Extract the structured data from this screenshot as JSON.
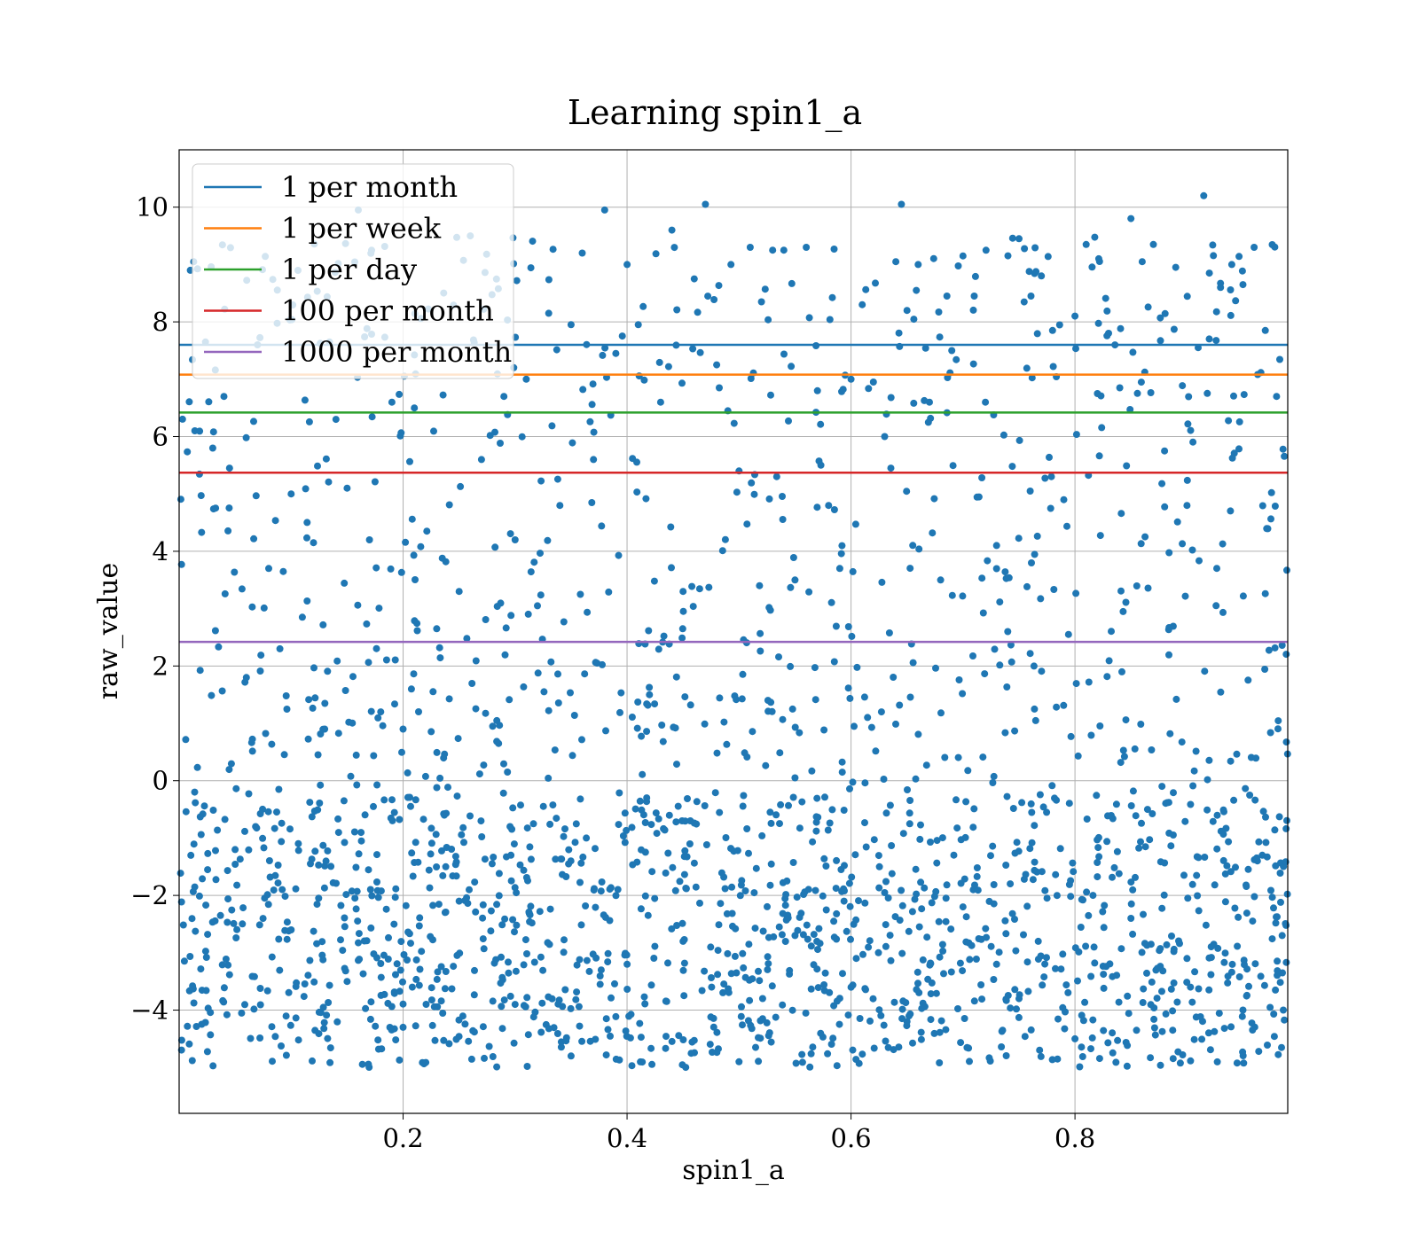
{
  "chart_data": {
    "type": "scatter",
    "title": "Learning spin1_a",
    "xlabel": "spin1_a",
    "ylabel": "raw_value",
    "xlim": [
      0.0,
      0.99
    ],
    "ylim": [
      -5.8,
      11.0
    ],
    "x_ticks": [
      0.2,
      0.4,
      0.6,
      0.8
    ],
    "x_tick_labels": [
      "0.2",
      "0.4",
      "0.6",
      "0.8"
    ],
    "y_ticks": [
      -4,
      -2,
      0,
      2,
      4,
      6,
      8,
      10
    ],
    "y_tick_labels": [
      "−4",
      "−2",
      "0",
      "2",
      "4",
      "6",
      "8",
      "10"
    ],
    "grid": true,
    "legend_position": "top-left",
    "scatter_color": "#1f77b4",
    "scatter_points_approx": [
      [
        0.01,
        8.9
      ],
      [
        0.013,
        9.05
      ],
      [
        0.014,
        6.1
      ],
      [
        0.02,
        4.33
      ],
      [
        0.03,
        5.8
      ],
      [
        0.04,
        6.7
      ],
      [
        0.045,
        5.45
      ],
      [
        0.06,
        1.8
      ],
      [
        0.07,
        7.6
      ],
      [
        0.08,
        3.7
      ],
      [
        0.09,
        2.3
      ],
      [
        0.1,
        5.0
      ],
      [
        0.11,
        2.85
      ],
      [
        0.12,
        4.15
      ],
      [
        0.13,
        0.9
      ],
      [
        0.14,
        6.3
      ],
      [
        0.15,
        5.1
      ],
      [
        0.16,
        9.95
      ],
      [
        0.17,
        4.2
      ],
      [
        0.18,
        1.2
      ],
      [
        0.19,
        6.6
      ],
      [
        0.2,
        0.9
      ],
      [
        0.21,
        6.5
      ],
      [
        0.23,
        2.65
      ],
      [
        0.25,
        3.3
      ],
      [
        0.26,
        9.5
      ],
      [
        0.27,
        5.6
      ],
      [
        0.28,
        0.95
      ],
      [
        0.29,
        6.7
      ],
      [
        0.3,
        4.2
      ],
      [
        0.31,
        7.0
      ],
      [
        0.32,
        3.05
      ],
      [
        0.33,
        8.15
      ],
      [
        0.34,
        4.8
      ],
      [
        0.35,
        7.95
      ],
      [
        0.36,
        9.2
      ],
      [
        0.37,
        5.6
      ],
      [
        0.38,
        9.95
      ],
      [
        0.39,
        7.45
      ],
      [
        0.4,
        9.0
      ],
      [
        0.41,
        7.95
      ],
      [
        0.42,
        1.5
      ],
      [
        0.43,
        6.6
      ],
      [
        0.44,
        9.6
      ],
      [
        0.45,
        3.3
      ],
      [
        0.46,
        8.75
      ],
      [
        0.47,
        10.05
      ],
      [
        0.48,
        7.25
      ],
      [
        0.49,
        6.45
      ],
      [
        0.5,
        5.4
      ],
      [
        0.51,
        9.3
      ],
      [
        0.52,
        8.35
      ],
      [
        0.53,
        9.25
      ],
      [
        0.54,
        9.25
      ],
      [
        0.55,
        3.5
      ],
      [
        0.56,
        9.3
      ],
      [
        0.57,
        6.8
      ],
      [
        0.58,
        4.8
      ],
      [
        0.59,
        3.7
      ],
      [
        0.6,
        7.0
      ],
      [
        0.61,
        8.3
      ],
      [
        0.62,
        6.95
      ],
      [
        0.63,
        6.0
      ],
      [
        0.64,
        9.05
      ],
      [
        0.645,
        10.05
      ],
      [
        0.65,
        8.2
      ],
      [
        0.66,
        9.0
      ],
      [
        0.67,
        6.6
      ],
      [
        0.68,
        3.5
      ],
      [
        0.69,
        7.5
      ],
      [
        0.7,
        9.15
      ],
      [
        0.71,
        8.45
      ],
      [
        0.72,
        6.6
      ],
      [
        0.73,
        4.1
      ],
      [
        0.74,
        2.6
      ],
      [
        0.75,
        9.45
      ],
      [
        0.76,
        5.05
      ],
      [
        0.77,
        8.8
      ],
      [
        0.78,
        7.85
      ],
      [
        0.79,
        4.9
      ],
      [
        0.8,
        8.1
      ],
      [
        0.81,
        9.35
      ],
      [
        0.82,
        6.75
      ],
      [
        0.83,
        7.8
      ],
      [
        0.84,
        6.85
      ],
      [
        0.85,
        9.8
      ],
      [
        0.86,
        9.05
      ],
      [
        0.87,
        9.35
      ],
      [
        0.88,
        5.75
      ],
      [
        0.89,
        8.95
      ],
      [
        0.9,
        4.8
      ],
      [
        0.91,
        7.55
      ],
      [
        0.915,
        10.2
      ],
      [
        0.92,
        8.85
      ],
      [
        0.93,
        8.6
      ],
      [
        0.94,
        9.0
      ],
      [
        0.95,
        8.65
      ],
      [
        0.96,
        9.3
      ],
      [
        0.97,
        7.85
      ],
      [
        0.98,
        6.7
      ],
      [
        0.05,
        -1.2
      ],
      [
        0.1,
        -2.6
      ],
      [
        0.15,
        -3.5
      ],
      [
        0.2,
        -4.3
      ],
      [
        0.25,
        -2.1
      ],
      [
        0.3,
        -3.9
      ],
      [
        0.35,
        -4.8
      ],
      [
        0.4,
        -3.2
      ],
      [
        0.45,
        -2.8
      ],
      [
        0.5,
        -4.9
      ],
      [
        0.55,
        -2.7
      ],
      [
        0.6,
        -3.6
      ],
      [
        0.65,
        -4.2
      ],
      [
        0.7,
        -2.2
      ],
      [
        0.75,
        -3.8
      ],
      [
        0.8,
        -4.5
      ],
      [
        0.85,
        -2.4
      ],
      [
        0.9,
        -3.1
      ],
      [
        0.95,
        -4.0
      ],
      [
        0.985,
        -2.7
      ]
    ],
    "series": [
      {
        "name": "1 per month",
        "type": "hline",
        "y": 7.6,
        "color": "#1f77b4"
      },
      {
        "name": "1 per week",
        "type": "hline",
        "y": 7.08,
        "color": "#ff7f0e"
      },
      {
        "name": "1 per day",
        "type": "hline",
        "y": 6.42,
        "color": "#2ca02c"
      },
      {
        "name": "100 per month",
        "type": "hline",
        "y": 5.37,
        "color": "#d62728"
      },
      {
        "name": "1000 per month",
        "type": "hline",
        "y": 2.42,
        "color": "#9467bd"
      }
    ]
  }
}
